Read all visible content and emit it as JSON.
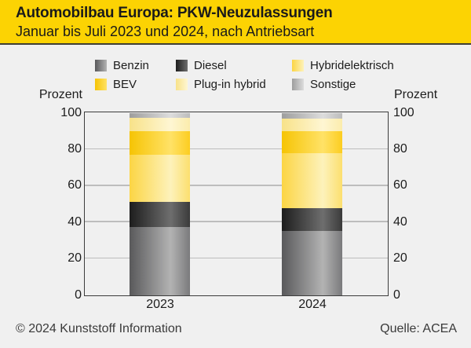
{
  "header": {
    "title": "Automobilbau Europa: PKW-Neuzulassungen",
    "subtitle": "Januar bis Juli 2023 und 2024, nach Antriebsart",
    "background_color": "#fcd303"
  },
  "axis": {
    "left_label": "Prozent",
    "right_label": "Prozent",
    "ticks": [
      100,
      80,
      60,
      40,
      20,
      0
    ]
  },
  "chart_data": {
    "type": "bar",
    "stacked": true,
    "title": "Automobilbau Europa: PKW-Neuzulassungen",
    "subtitle": "Januar bis Juli 2023 und 2024, nach Antriebsart",
    "xlabel": "",
    "ylabel": "Prozent",
    "ylim": [
      0,
      100
    ],
    "grid": true,
    "legend_position": "top",
    "categories": [
      "2023",
      "2024"
    ],
    "series": [
      {
        "name": "Benzin",
        "values": [
          37.5,
          35.2
        ],
        "color": "#8c8c8e",
        "gradient": [
          "#59595b",
          "#b3b3b3",
          "#7a7a7c"
        ]
      },
      {
        "name": "Diesel",
        "values": [
          14.0,
          12.8
        ],
        "color": "#3a3a3a",
        "gradient": [
          "#1d1d1d",
          "#6e6e6e",
          "#3a3a3a"
        ]
      },
      {
        "name": "Hybridelektrisch",
        "values": [
          25.5,
          30.0
        ],
        "color": "#fce284",
        "gradient": [
          "#fcd544",
          "#fdf2bb",
          "#fcdf6e"
        ]
      },
      {
        "name": "BEV",
        "values": [
          13.0,
          12.0
        ],
        "color": "#fbcb09",
        "gradient": [
          "#f6c404",
          "#ffe267",
          "#fccd20"
        ]
      },
      {
        "name": "Plug-in hybrid",
        "values": [
          7.5,
          7.0
        ],
        "color": "#fbecac",
        "gradient": [
          "#f8e289",
          "#fef6d3",
          "#fbecac"
        ]
      },
      {
        "name": "Sonstige",
        "values": [
          2.5,
          3.0
        ],
        "color": "#c0c0c0",
        "gradient": [
          "#9d9d9d",
          "#dddddd",
          "#bcbcbc"
        ]
      }
    ]
  },
  "footer": {
    "copyright": "© 2024 Kunststoff Information",
    "source": "Quelle: ACEA"
  }
}
